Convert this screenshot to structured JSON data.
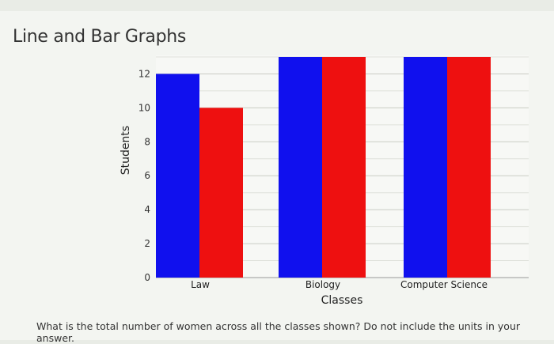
{
  "page": {
    "title": "Line and Bar Graphs",
    "question": "What is the total number of women across all the classes shown? Do not include the units in your answer."
  },
  "chart_data": {
    "type": "bar",
    "categories": [
      "Law",
      "Biology",
      "Computer Science"
    ],
    "series": [
      {
        "values": [
          12,
          13,
          13
        ],
        "color": "#1010ee"
      },
      {
        "values": [
          10,
          13,
          13
        ],
        "color": "#ee1010"
      }
    ],
    "xlabel": "Classes",
    "ylabel": "Students",
    "yticks": [
      "0",
      "2",
      "4",
      "6",
      "8",
      "10",
      "12"
    ],
    "ylim": [
      0,
      13
    ],
    "grid": true
  }
}
